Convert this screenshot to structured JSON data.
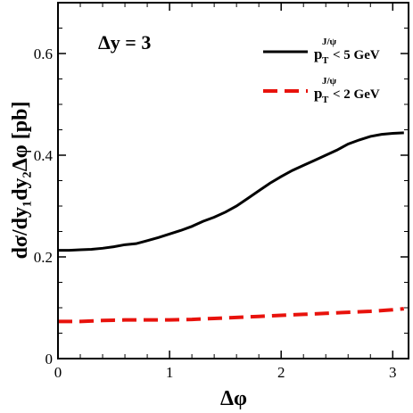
{
  "chart_data": {
    "type": "line",
    "xlabel": "Δφ",
    "ylabel": "dσ/dy₁dy₂Δφ [pb]",
    "xlim": [
      0,
      3.14159
    ],
    "ylim": [
      0,
      0.7
    ],
    "xticks": [
      "0",
      "1",
      "2",
      "3"
    ],
    "yticks": [
      "0",
      "0.2",
      "0.4",
      "0.6"
    ],
    "annotation": "Δy = 3",
    "legend_position": "top-right",
    "series": [
      {
        "name": "p_T^{J/ψ} < 5 GeV",
        "legend_label_parts": {
          "p": "p",
          "sub": "T",
          "sup": "J/ψ",
          "rest": "< 5 GeV"
        },
        "color": "#000000",
        "style": "solid",
        "x": [
          0.0,
          0.1,
          0.2,
          0.3,
          0.4,
          0.5,
          0.6,
          0.7,
          0.8,
          0.9,
          1.0,
          1.1,
          1.2,
          1.3,
          1.4,
          1.5,
          1.6,
          1.7,
          1.8,
          1.9,
          2.0,
          2.1,
          2.2,
          2.3,
          2.4,
          2.5,
          2.6,
          2.7,
          2.8,
          2.9,
          3.0,
          3.1
        ],
        "y": [
          0.213,
          0.213,
          0.214,
          0.215,
          0.217,
          0.22,
          0.224,
          0.226,
          0.232,
          0.238,
          0.245,
          0.252,
          0.26,
          0.27,
          0.278,
          0.288,
          0.3,
          0.315,
          0.33,
          0.345,
          0.358,
          0.37,
          0.38,
          0.39,
          0.4,
          0.41,
          0.422,
          0.43,
          0.437,
          0.441,
          0.443,
          0.444
        ]
      },
      {
        "name": "p_T^{J/ψ} < 2 GeV",
        "legend_label_parts": {
          "p": "p",
          "sub": "T",
          "sup": "J/ψ",
          "rest": "< 2 GeV"
        },
        "color": "#e8120c",
        "style": "dashed",
        "x": [
          0.0,
          0.2,
          0.4,
          0.6,
          0.8,
          1.0,
          1.2,
          1.4,
          1.6,
          1.8,
          2.0,
          2.2,
          2.4,
          2.6,
          2.8,
          3.0,
          3.1
        ],
        "y": [
          0.073,
          0.073,
          0.075,
          0.076,
          0.076,
          0.076,
          0.077,
          0.079,
          0.081,
          0.083,
          0.085,
          0.087,
          0.089,
          0.091,
          0.093,
          0.096,
          0.098
        ]
      }
    ]
  }
}
